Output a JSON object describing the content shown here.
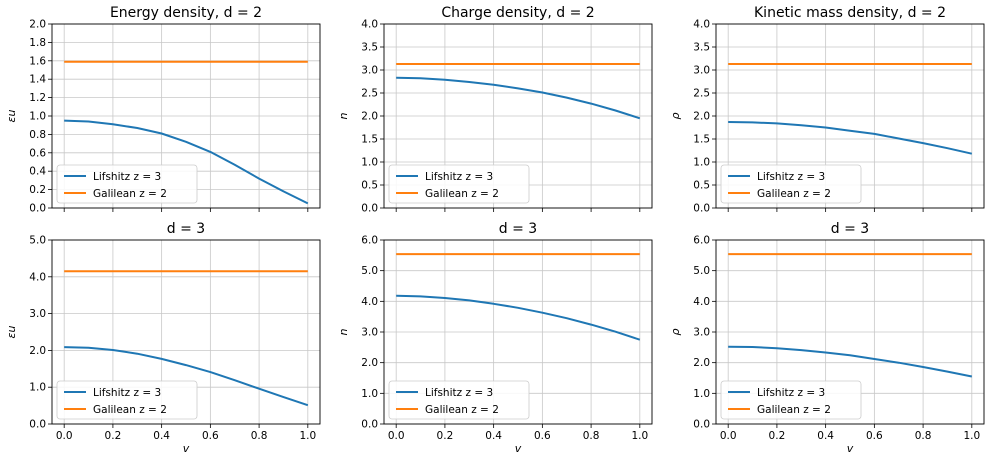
{
  "figure": {
    "colors": {
      "series_1": "#1f77b4",
      "series_2": "#ff7f0e",
      "grid": "#c8c8c8"
    }
  },
  "chart_data": [
    {
      "type": "line",
      "title": "Energy density, d = 2",
      "xlabel": "",
      "ylabel": "εu",
      "xlim": [
        -0.05,
        1.05
      ],
      "ylim": [
        0,
        2
      ],
      "xticks": [
        "0.0",
        "0.2",
        "0.4",
        "0.6",
        "0.8",
        "1.0"
      ],
      "yticks": [
        "0.0",
        "0.2",
        "0.4",
        "0.6",
        "0.8",
        "1.0",
        "1.2",
        "1.4",
        "1.6",
        "1.8",
        "2.0"
      ],
      "grid": true,
      "legend_position": "lower-left",
      "x": [
        0,
        0.1,
        0.2,
        0.3,
        0.4,
        0.5,
        0.6,
        0.7,
        0.8,
        0.9,
        1.0
      ],
      "series": [
        {
          "name": "Lifshitz z = 3",
          "values": [
            0.95,
            0.94,
            0.91,
            0.87,
            0.81,
            0.72,
            0.61,
            0.47,
            0.32,
            0.18,
            0.05
          ]
        },
        {
          "name": "Galilean z = 2",
          "values": [
            1.59,
            1.59,
            1.59,
            1.59,
            1.59,
            1.59,
            1.59,
            1.59,
            1.59,
            1.59,
            1.59
          ]
        }
      ]
    },
    {
      "type": "line",
      "title": "Charge density, d = 2",
      "xlabel": "",
      "ylabel": "n",
      "xlim": [
        -0.05,
        1.05
      ],
      "ylim": [
        0,
        4
      ],
      "xticks": [
        "0.0",
        "0.2",
        "0.4",
        "0.6",
        "0.8",
        "1.0"
      ],
      "yticks": [
        "0.0",
        "0.5",
        "1.0",
        "1.5",
        "2.0",
        "2.5",
        "3.0",
        "3.5",
        "4.0"
      ],
      "grid": true,
      "legend_position": "lower-left",
      "x": [
        0,
        0.1,
        0.2,
        0.3,
        0.4,
        0.5,
        0.6,
        0.7,
        0.8,
        0.9,
        1.0
      ],
      "series": [
        {
          "name": "Lifshitz z = 3",
          "values": [
            2.83,
            2.82,
            2.79,
            2.74,
            2.68,
            2.6,
            2.51,
            2.4,
            2.27,
            2.12,
            1.95
          ]
        },
        {
          "name": "Galilean z = 2",
          "values": [
            3.13,
            3.13,
            3.13,
            3.13,
            3.13,
            3.13,
            3.13,
            3.13,
            3.13,
            3.13,
            3.13
          ]
        }
      ]
    },
    {
      "type": "line",
      "title": "Kinetic mass density, d = 2",
      "xlabel": "",
      "ylabel": "ρ",
      "xlim": [
        -0.05,
        1.05
      ],
      "ylim": [
        0,
        4
      ],
      "xticks": [
        "0.0",
        "0.2",
        "0.4",
        "0.6",
        "0.8",
        "1.0"
      ],
      "yticks": [
        "0.0",
        "0.5",
        "1.0",
        "1.5",
        "2.0",
        "2.5",
        "3.0",
        "3.5",
        "4.0"
      ],
      "grid": true,
      "legend_position": "lower-left",
      "x": [
        0,
        0.1,
        0.2,
        0.3,
        0.4,
        0.5,
        0.6,
        0.7,
        0.8,
        0.9,
        1.0
      ],
      "series": [
        {
          "name": "Lifshitz z = 3",
          "values": [
            1.87,
            1.86,
            1.84,
            1.8,
            1.75,
            1.68,
            1.61,
            1.51,
            1.41,
            1.3,
            1.18
          ]
        },
        {
          "name": "Galilean z = 2",
          "values": [
            3.13,
            3.13,
            3.13,
            3.13,
            3.13,
            3.13,
            3.13,
            3.13,
            3.13,
            3.13,
            3.13
          ]
        }
      ]
    },
    {
      "type": "line",
      "title": "d = 3",
      "xlabel": "v",
      "ylabel": "εu",
      "xlim": [
        -0.05,
        1.05
      ],
      "ylim": [
        0,
        5
      ],
      "xticks": [
        "0.0",
        "0.2",
        "0.4",
        "0.6",
        "0.8",
        "1.0"
      ],
      "yticks": [
        "0.0",
        "1.0",
        "2.0",
        "3.0",
        "4.0",
        "5.0"
      ],
      "grid": true,
      "legend_position": "lower-left",
      "x": [
        0,
        0.1,
        0.2,
        0.3,
        0.4,
        0.5,
        0.6,
        0.7,
        0.8,
        0.9,
        1.0
      ],
      "series": [
        {
          "name": "Lifshitz z = 3",
          "values": [
            2.09,
            2.07,
            2.01,
            1.91,
            1.77,
            1.6,
            1.41,
            1.19,
            0.96,
            0.73,
            0.51
          ]
        },
        {
          "name": "Galilean z = 2",
          "values": [
            4.15,
            4.15,
            4.15,
            4.15,
            4.15,
            4.15,
            4.15,
            4.15,
            4.15,
            4.15,
            4.15
          ]
        }
      ]
    },
    {
      "type": "line",
      "title": "d = 3",
      "xlabel": "v",
      "ylabel": "n",
      "xlim": [
        -0.05,
        1.05
      ],
      "ylim": [
        0,
        6
      ],
      "xticks": [
        "0.0",
        "0.2",
        "0.4",
        "0.6",
        "0.8",
        "1.0"
      ],
      "yticks": [
        "0.0",
        "1.0",
        "2.0",
        "3.0",
        "4.0",
        "5.0",
        "6.0"
      ],
      "grid": true,
      "legend_position": "lower-left",
      "x": [
        0,
        0.1,
        0.2,
        0.3,
        0.4,
        0.5,
        0.6,
        0.7,
        0.8,
        0.9,
        1.0
      ],
      "series": [
        {
          "name": "Lifshitz z = 3",
          "values": [
            4.18,
            4.16,
            4.11,
            4.03,
            3.92,
            3.79,
            3.63,
            3.45,
            3.24,
            3.01,
            2.75
          ]
        },
        {
          "name": "Galilean z = 2",
          "values": [
            5.54,
            5.54,
            5.54,
            5.54,
            5.54,
            5.54,
            5.54,
            5.54,
            5.54,
            5.54,
            5.54
          ]
        }
      ]
    },
    {
      "type": "line",
      "title": "d = 3",
      "xlabel": "v",
      "ylabel": "ρ",
      "xlim": [
        -0.05,
        1.05
      ],
      "ylim": [
        0,
        6
      ],
      "xticks": [
        "0.0",
        "0.2",
        "0.4",
        "0.6",
        "0.8",
        "1.0"
      ],
      "yticks": [
        "0.0",
        "1.0",
        "2.0",
        "3.0",
        "4.0",
        "5.0",
        "6.0"
      ],
      "grid": true,
      "legend_position": "lower-left",
      "x": [
        0,
        0.1,
        0.2,
        0.3,
        0.4,
        0.5,
        0.6,
        0.7,
        0.8,
        0.9,
        1.0
      ],
      "series": [
        {
          "name": "Lifshitz z = 3",
          "values": [
            2.52,
            2.51,
            2.47,
            2.41,
            2.33,
            2.24,
            2.12,
            2.0,
            1.86,
            1.71,
            1.55
          ]
        },
        {
          "name": "Galilean z = 2",
          "values": [
            5.54,
            5.54,
            5.54,
            5.54,
            5.54,
            5.54,
            5.54,
            5.54,
            5.54,
            5.54,
            5.54
          ]
        }
      ]
    }
  ]
}
